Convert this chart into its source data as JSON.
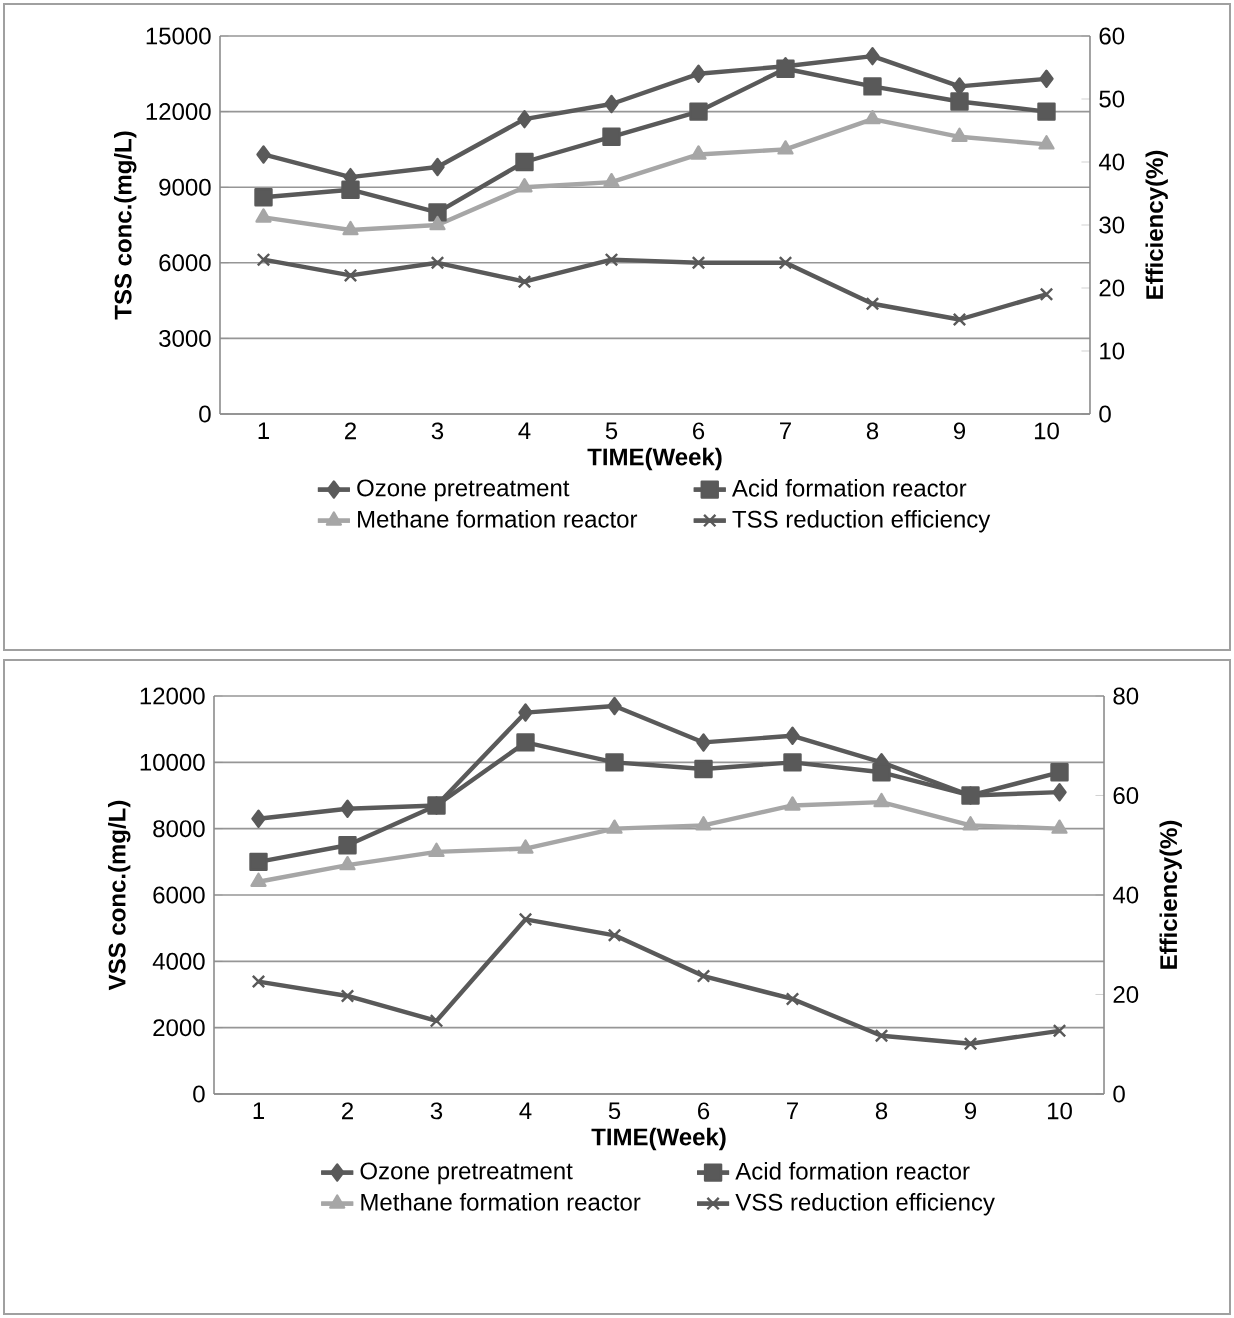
{
  "chart_data": [
    {
      "type": "line",
      "xlabel": "TIME(Week)",
      "ylabel": "TSS conc.(mg/L)",
      "y2label": "Efficiency(%)",
      "categories": [
        "1",
        "2",
        "3",
        "4",
        "5",
        "6",
        "7",
        "8",
        "9",
        "10"
      ],
      "ylim": [
        0,
        15000
      ],
      "yticks": [
        0,
        3000,
        6000,
        9000,
        12000,
        15000
      ],
      "y2lim": [
        0,
        60
      ],
      "y2ticks": [
        0,
        10,
        20,
        30,
        40,
        50,
        60
      ],
      "grid": "y",
      "legend": "bottom",
      "series": [
        {
          "name": "Ozone pretreatment",
          "color": "#5a5a5a",
          "marker": "diamond",
          "values": [
            10300,
            9400,
            9800,
            11700,
            12300,
            13500,
            13800,
            14200,
            13000,
            13300
          ]
        },
        {
          "name": "Acid formation reactor",
          "color": "#595959",
          "marker": "square",
          "values": [
            8600,
            8900,
            8000,
            10000,
            11000,
            12000,
            13700,
            13000,
            12400,
            12000
          ]
        },
        {
          "name": "Methane formation reactor",
          "color": "#a6a6a6",
          "marker": "triangle",
          "values": [
            7800,
            7300,
            7500,
            9000,
            9200,
            10300,
            10500,
            11700,
            11000,
            10700
          ]
        },
        {
          "name": "TSS reduction efficiency",
          "color": "#595959",
          "marker": "cross",
          "axis": "y2",
          "values": [
            24.5,
            22,
            24,
            21,
            24.5,
            24,
            24,
            17.5,
            15,
            19
          ]
        }
      ]
    },
    {
      "type": "line",
      "xlabel": "TIME(Week)",
      "ylabel": "VSS conc.(mg/L)",
      "y2label": "Efficiency(%)",
      "categories": [
        "1",
        "2",
        "3",
        "4",
        "5",
        "6",
        "7",
        "8",
        "9",
        "10"
      ],
      "ylim": [
        0,
        12000
      ],
      "yticks": [
        0,
        2000,
        4000,
        6000,
        8000,
        10000,
        12000
      ],
      "y2lim": [
        0,
        80
      ],
      "y2ticks": [
        0,
        20,
        40,
        60,
        80
      ],
      "grid": "y",
      "legend": "bottom",
      "series": [
        {
          "name": "Ozone pretreatment",
          "color": "#5a5a5a",
          "marker": "diamond",
          "values": [
            8300,
            8600,
            8700,
            11500,
            11700,
            10600,
            10800,
            10000,
            9000,
            9100
          ]
        },
        {
          "name": "Acid formation reactor",
          "color": "#595959",
          "marker": "square",
          "values": [
            7000,
            7500,
            8700,
            10600,
            10000,
            9800,
            10000,
            9700,
            9000,
            9700
          ]
        },
        {
          "name": "Methane formation reactor",
          "color": "#a6a6a6",
          "marker": "triangle",
          "values": [
            6400,
            6900,
            7300,
            7400,
            8000,
            8100,
            8700,
            8800,
            8100,
            8000
          ]
        },
        {
          "name": "VSS reduction efficiency",
          "color": "#595959",
          "marker": "cross",
          "axis": "y2",
          "values": [
            22.6,
            19.7,
            14.7,
            35.1,
            31.9,
            23.7,
            19.1,
            11.7,
            10.1,
            12.7
          ]
        }
      ]
    }
  ]
}
